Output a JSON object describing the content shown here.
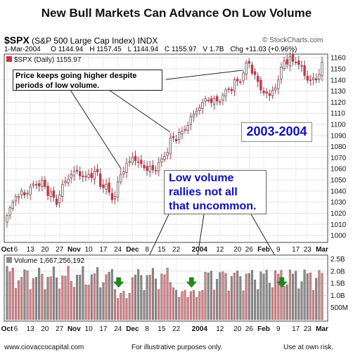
{
  "title": "New Bull Markets Can Advance On Low Volume",
  "header": {
    "symbol": "$SPX",
    "symbol_desc": "(S&P 500 Large Cap Index) INDX",
    "source": "© StockCharts.com",
    "date": "1-Mar-2004",
    "open": "O 1144.94",
    "high": "H 1157.45",
    "low": "L 1144.94",
    "close": "C 1155.97",
    "volume": "V 1.7B",
    "change": "Chg +11.03 (+0.96%)",
    "change_marker": "▲",
    "legend": "$SPX (Daily) 1155.97"
  },
  "annotations": {
    "price_note": "Price keeps going higher despite periods of low volume.",
    "year_label": "2003-2004",
    "volume_note": [
      "Low volume",
      "rallies not all",
      "that uncommon."
    ]
  },
  "colors": {
    "up": "#cc3344",
    "down": "#555555",
    "vol_up": "#e07c84",
    "vol_down": "#8a8a8a",
    "arrow": "#1a8c1a",
    "accent": "#1010c0"
  },
  "footer": {
    "left": "www.ciovaccocapital.com",
    "center": "For illustrative purposes only.",
    "right": "Use at own risk."
  },
  "chart_data": [
    {
      "type": "candlestick",
      "title": "$SPX (Daily) 1155.97",
      "x_tick_labels": [
        "Oct",
        "6",
        "13",
        "20",
        "27",
        "Nov",
        "10",
        "17",
        "24",
        "Dec",
        "8",
        "15",
        "22",
        "2004",
        "12",
        "20",
        "26",
        "Feb",
        "9",
        "17",
        "23",
        "Mar"
      ],
      "y_ticks": [
        1000,
        1010,
        1020,
        1030,
        1040,
        1050,
        1060,
        1070,
        1080,
        1090,
        1100,
        1110,
        1120,
        1130,
        1140,
        1150,
        1160
      ],
      "ylim": [
        995,
        1162
      ],
      "anchors": [
        {
          "date": "2003-10-01",
          "close": 1018
        },
        {
          "date": "2003-10-06",
          "close": 1035
        },
        {
          "date": "2003-10-10",
          "close": 1038
        },
        {
          "date": "2003-10-15",
          "close": 1046
        },
        {
          "date": "2003-10-20",
          "close": 1044
        },
        {
          "date": "2003-10-24",
          "close": 1028
        },
        {
          "date": "2003-10-28",
          "close": 1046
        },
        {
          "date": "2003-11-03",
          "close": 1058
        },
        {
          "date": "2003-11-07",
          "close": 1053
        },
        {
          "date": "2003-11-12",
          "close": 1058
        },
        {
          "date": "2003-11-17",
          "close": 1043
        },
        {
          "date": "2003-11-21",
          "close": 1035
        },
        {
          "date": "2003-11-25",
          "close": 1055
        },
        {
          "date": "2003-12-01",
          "close": 1070
        },
        {
          "date": "2003-12-05",
          "close": 1061
        },
        {
          "date": "2003-12-10",
          "close": 1059
        },
        {
          "date": "2003-12-15",
          "close": 1069
        },
        {
          "date": "2003-12-19",
          "close": 1088
        },
        {
          "date": "2003-12-24",
          "close": 1094
        },
        {
          "date": "2003-12-31",
          "close": 1112
        },
        {
          "date": "2004-01-05",
          "close": 1123
        },
        {
          "date": "2004-01-09",
          "close": 1121
        },
        {
          "date": "2004-01-14",
          "close": 1131
        },
        {
          "date": "2004-01-20",
          "close": 1139
        },
        {
          "date": "2004-01-26",
          "close": 1155
        },
        {
          "date": "2004-01-30",
          "close": 1131
        },
        {
          "date": "2004-02-04",
          "close": 1126
        },
        {
          "date": "2004-02-09",
          "close": 1140
        },
        {
          "date": "2004-02-11",
          "close": 1157
        },
        {
          "date": "2004-02-17",
          "close": 1156
        },
        {
          "date": "2004-02-20",
          "close": 1144
        },
        {
          "date": "2004-02-24",
          "close": 1140
        },
        {
          "date": "2004-02-27",
          "close": 1145
        },
        {
          "date": "2004-03-01",
          "close": 1155.97
        }
      ]
    },
    {
      "type": "bar",
      "title": "Volume 1,667,256,192",
      "y_tick_labels": [
        "2.5B",
        "2.0B",
        "1.5B",
        "1.0B",
        "500M"
      ],
      "y_ticks": [
        2.5,
        2.0,
        1.5,
        1.0,
        0.5
      ],
      "ylim": [
        0,
        2.6
      ],
      "unit": "billions of shares",
      "typical_volume": 1.75,
      "low_volume_periods": [
        {
          "start": "2003-11-24",
          "end": "2003-11-29",
          "volume": 1.05
        },
        {
          "start": "2003-12-22",
          "end": "2004-01-02",
          "volume": 1.1
        }
      ]
    }
  ]
}
